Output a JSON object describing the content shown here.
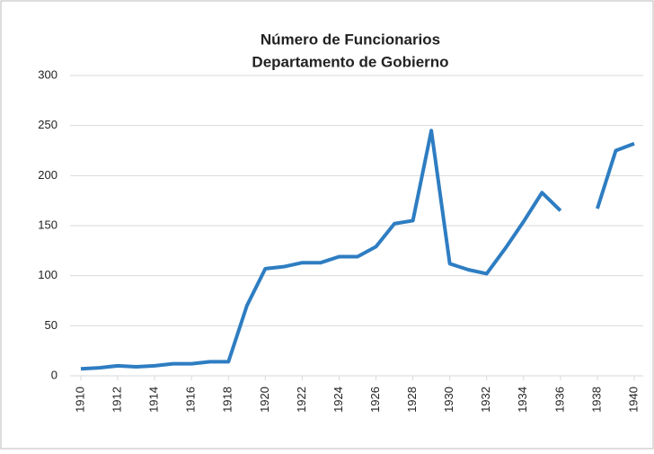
{
  "chart_data": {
    "type": "line",
    "title": "Número de Funcionarios",
    "subtitle": "Departamento de Gobierno",
    "x": [
      1910,
      1911,
      1912,
      1913,
      1914,
      1915,
      1916,
      1917,
      1918,
      1919,
      1920,
      1921,
      1922,
      1923,
      1924,
      1925,
      1926,
      1927,
      1928,
      1929,
      1930,
      1931,
      1932,
      1933,
      1934,
      1935,
      1936,
      1937,
      1938,
      1939,
      1940
    ],
    "series": [
      {
        "name": "Funcionarios",
        "color": "#2e7dc2",
        "values": [
          7,
          8,
          10,
          9,
          10,
          12,
          12,
          14,
          14,
          70,
          107,
          109,
          113,
          113,
          119,
          119,
          129,
          152,
          155,
          245,
          112,
          106,
          102,
          127,
          154,
          183,
          165,
          null,
          167,
          225,
          232
        ]
      }
    ],
    "xlim": [
      1910,
      1940
    ],
    "xticks": [
      1910,
      1912,
      1914,
      1916,
      1918,
      1920,
      1922,
      1924,
      1926,
      1928,
      1930,
      1932,
      1934,
      1936,
      1938,
      1940
    ],
    "ylim": [
      0,
      300
    ],
    "yticks": [
      0,
      50,
      100,
      150,
      200,
      250,
      300
    ],
    "grid": true
  }
}
